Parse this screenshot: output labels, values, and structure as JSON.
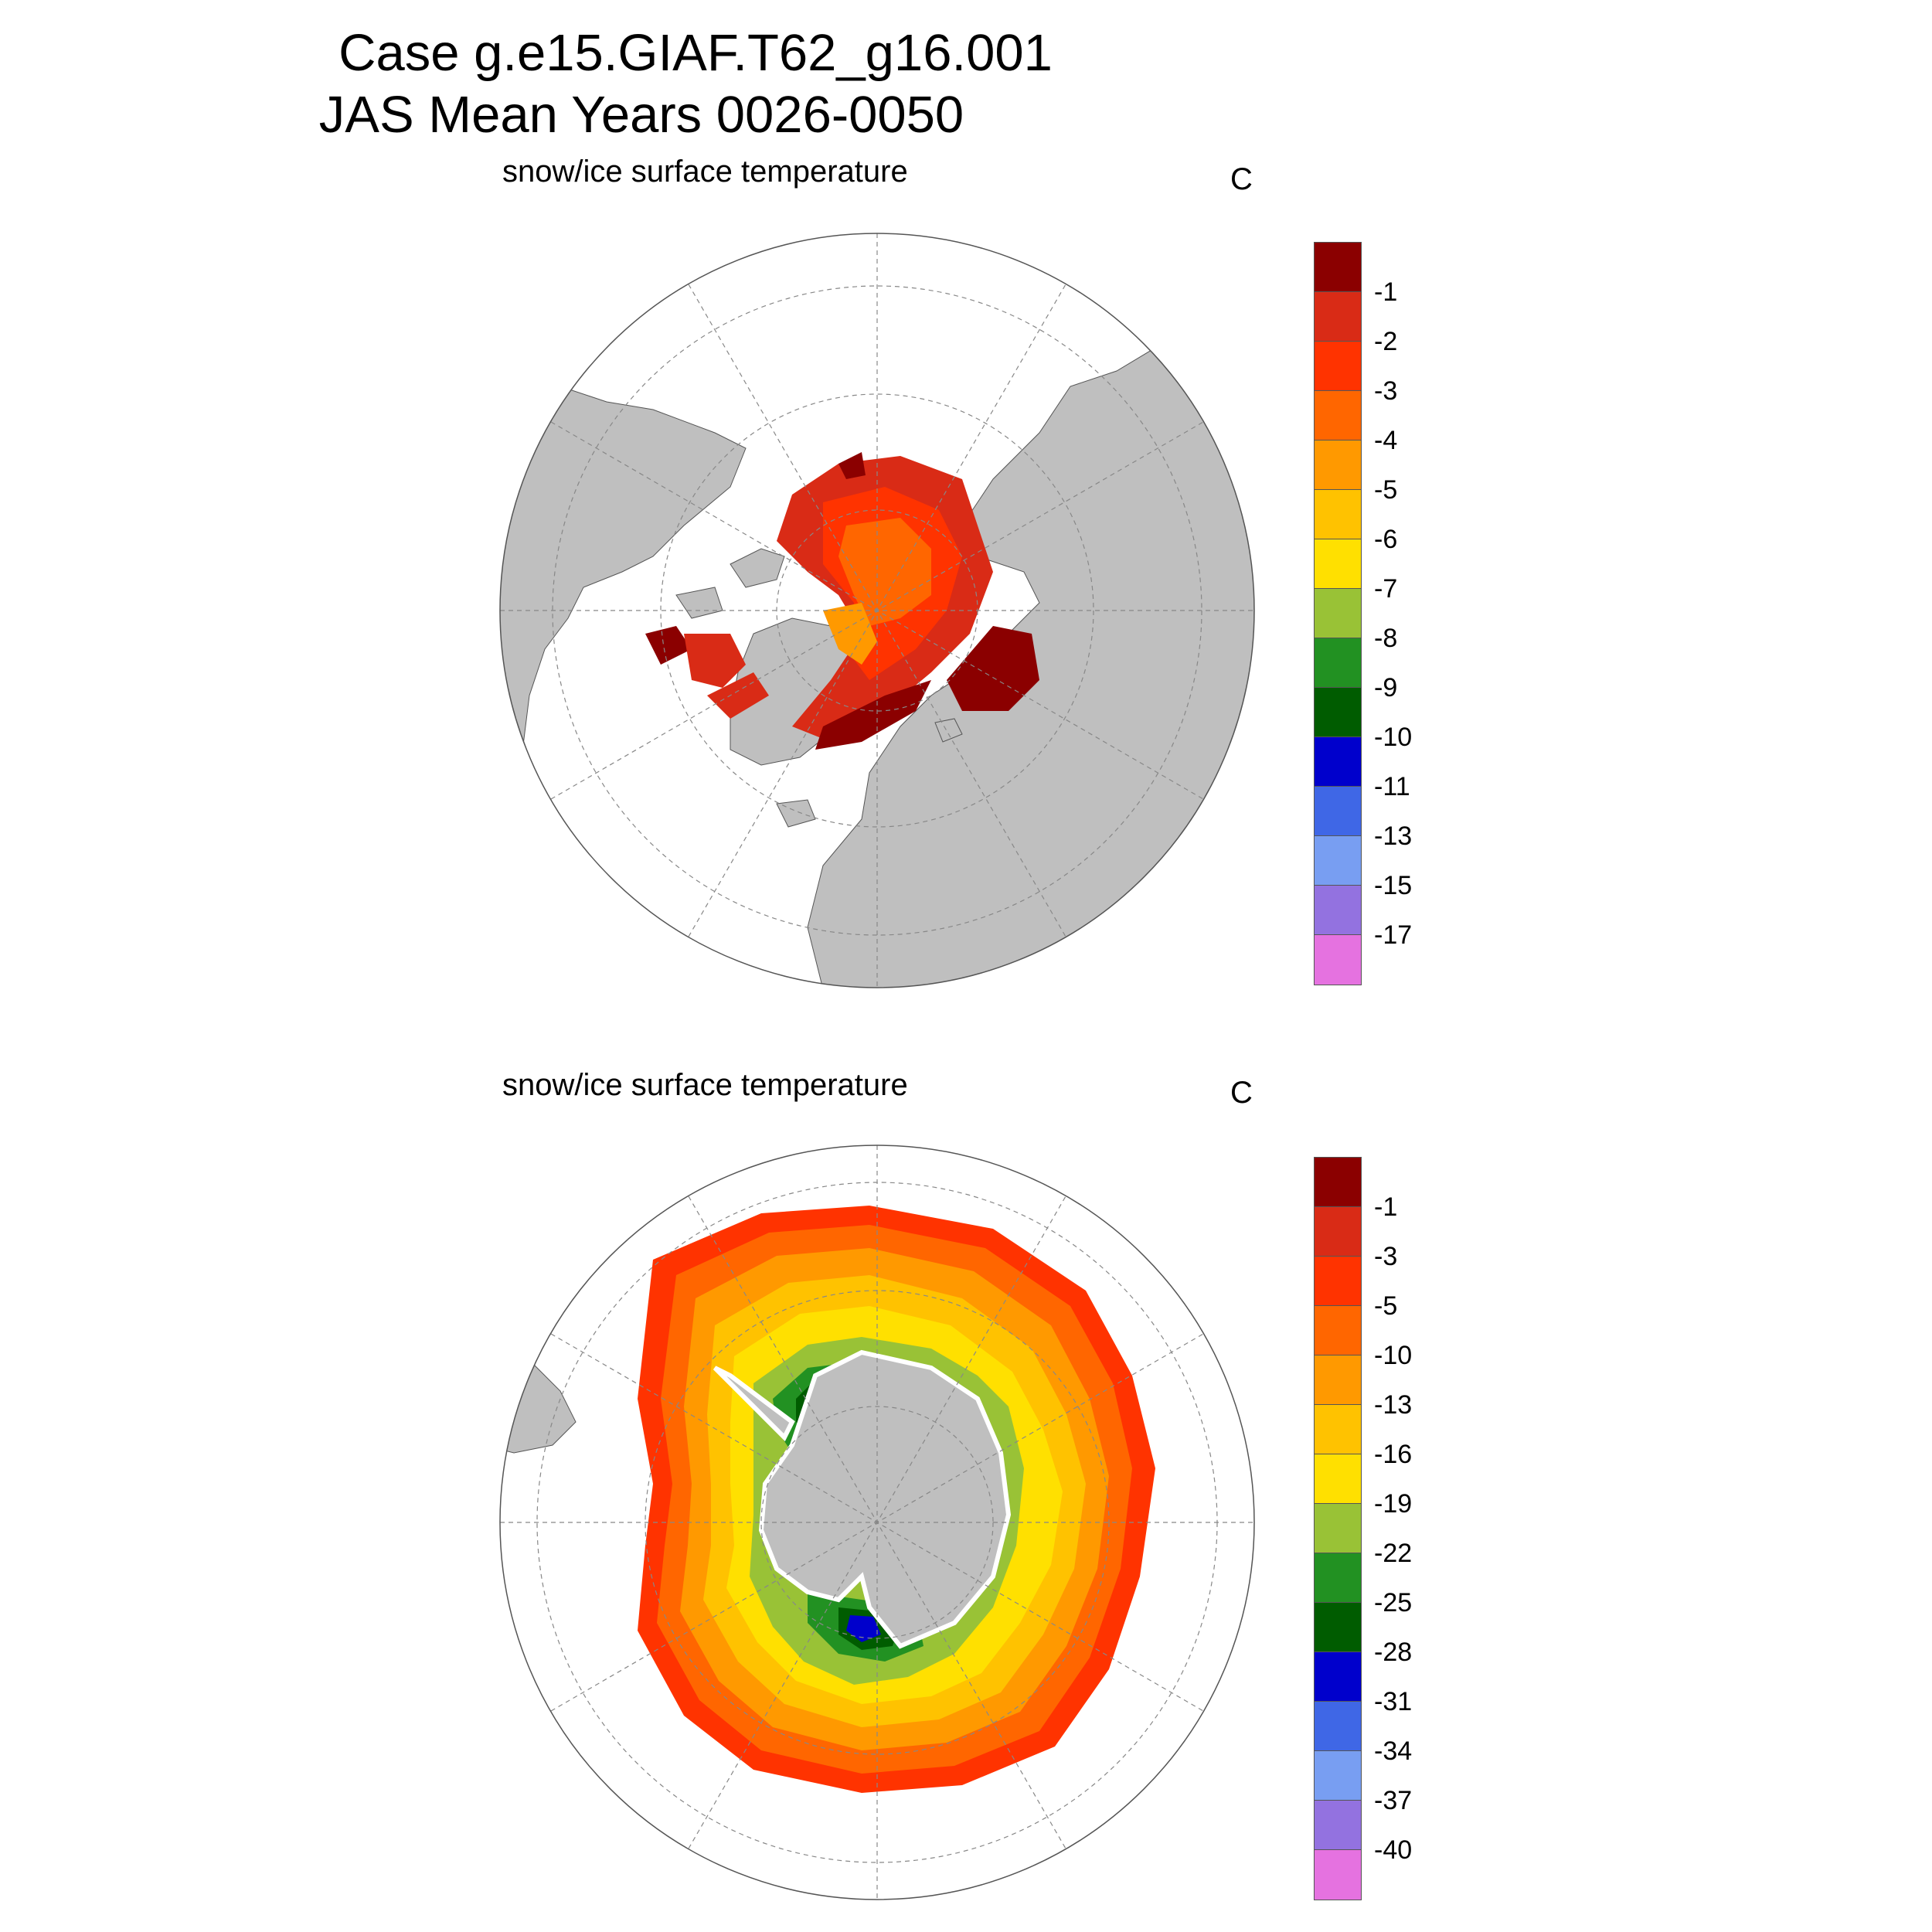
{
  "title": {
    "line1": "Case g.e15.GIAF.T62_g16.001",
    "line2": "JAS Mean   Years 0026-0050"
  },
  "colors": [
    "#8b0000",
    "#d92b16",
    "#ff3300",
    "#ff6600",
    "#ff9900",
    "#ffc200",
    "#ffe000",
    "#99c236",
    "#229122",
    "#005c00",
    "#0000cc",
    "#3f67e6",
    "#789ef2",
    "#9372e0",
    "#e572e0"
  ],
  "land_color": "#bfbfbf",
  "panels": [
    {
      "title": "snow/ice surface temperature",
      "unit": "C",
      "hemisphere": "north",
      "levels": [
        "-1",
        "-2",
        "-3",
        "-4",
        "-5",
        "-6",
        "-7",
        "-8",
        "-9",
        "-10",
        "-11",
        "-13",
        "-15",
        "-17"
      ]
    },
    {
      "title": "snow/ice surface temperature",
      "unit": "C",
      "hemisphere": "south",
      "levels": [
        "-1",
        "-3",
        "-5",
        "-10",
        "-13",
        "-16",
        "-19",
        "-22",
        "-25",
        "-28",
        "-31",
        "-34",
        "-37",
        "-40"
      ]
    }
  ]
}
